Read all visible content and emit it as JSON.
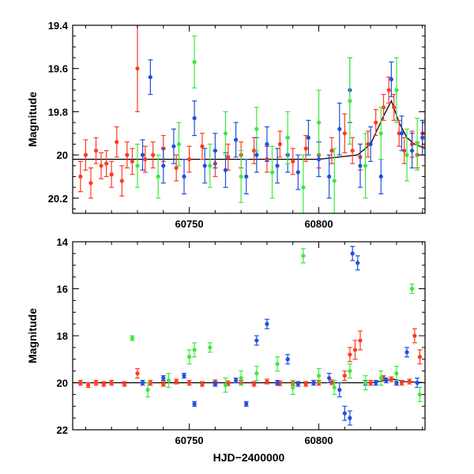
{
  "chart_data": [
    {
      "type": "scatter",
      "panel": "top",
      "xlabel": "",
      "ylabel": "Magnitude",
      "xlim": [
        60705,
        60841
      ],
      "ylim": [
        20.27,
        19.4
      ],
      "y_inverted": true,
      "x_ticks": [
        60750,
        60800
      ],
      "x_tick_labels": [
        "60750",
        "60800"
      ],
      "y_ticks": [
        19.4,
        19.6,
        19.8,
        20.0,
        20.2
      ],
      "y_tick_labels": [
        "19.4",
        "19.6",
        "19.8",
        "20",
        "20.2"
      ],
      "grid": false,
      "legend": "none",
      "series": [
        {
          "color": "#ff3b1f",
          "x": [
            60708,
            60710,
            60712,
            60714,
            60716,
            60718,
            60720,
            60722,
            60724,
            60726,
            60728,
            60730,
            60733,
            60736,
            60740,
            60745,
            60750,
            60755,
            60760,
            60765,
            60770,
            60775,
            60780,
            60785,
            60790,
            60795,
            60800,
            60805,
            60810,
            60813,
            60816,
            60819,
            60822,
            60825,
            60827,
            60829,
            60831,
            60833,
            60836,
            60838,
            60840
          ],
          "y": [
            20.1,
            20.0,
            20.13,
            19.98,
            20.05,
            20.04,
            20.09,
            19.94,
            20.12,
            20.0,
            20.03,
            19.6,
            20.02,
            20.0,
            19.97,
            20.06,
            20.02,
            19.96,
            20.04,
            20.01,
            20.0,
            19.98,
            20.02,
            19.95,
            20.03,
            19.97,
            20.0,
            19.98,
            19.9,
            19.98,
            20.01,
            19.95,
            19.85,
            19.78,
            19.7,
            19.78,
            19.9,
            19.98,
            19.95,
            20.0,
            19.9
          ],
          "err": [
            0.07,
            0.07,
            0.07,
            0.06,
            0.06,
            0.06,
            0.06,
            0.07,
            0.07,
            0.06,
            0.06,
            0.2,
            0.06,
            0.06,
            0.06,
            0.06,
            0.06,
            0.06,
            0.06,
            0.06,
            0.06,
            0.06,
            0.06,
            0.06,
            0.06,
            0.06,
            0.06,
            0.06,
            0.09,
            0.06,
            0.06,
            0.06,
            0.06,
            0.06,
            0.06,
            0.06,
            0.06,
            0.06,
            0.06,
            0.06,
            0.06
          ]
        },
        {
          "color": "#1f4fe0",
          "x": [
            60732,
            60735,
            60740,
            60744,
            60748,
            60752,
            60756,
            60760,
            60764,
            60768,
            60772,
            60776,
            60780,
            60784,
            60788,
            60792,
            60796,
            60800,
            60804,
            60808,
            60812,
            60816,
            60820,
            60824,
            60828,
            60832,
            60836,
            60840
          ],
          "y": [
            20.0,
            19.64,
            20.05,
            19.96,
            20.1,
            19.83,
            20.05,
            19.98,
            20.07,
            19.93,
            20.1,
            20.0,
            19.95,
            20.05,
            20.0,
            20.08,
            19.92,
            20.02,
            20.1,
            19.88,
            19.7,
            20.05,
            19.95,
            20.1,
            19.65,
            19.9,
            19.98,
            19.92
          ],
          "err": [
            0.07,
            0.08,
            0.08,
            0.08,
            0.08,
            0.08,
            0.08,
            0.08,
            0.08,
            0.08,
            0.08,
            0.08,
            0.08,
            0.08,
            0.08,
            0.08,
            0.08,
            0.08,
            0.1,
            0.12,
            0.15,
            0.1,
            0.08,
            0.08,
            0.08,
            0.08,
            0.08,
            0.08
          ]
        },
        {
          "color": "#3ee83e",
          "x": [
            60730,
            60738,
            60746,
            60752,
            60758,
            60764,
            60770,
            60776,
            60782,
            60788,
            60794,
            60800,
            60806,
            60812,
            60818,
            60824,
            60830,
            60834,
            60838
          ],
          "y": [
            20.05,
            20.1,
            19.95,
            19.57,
            20.05,
            19.9,
            20.1,
            19.88,
            20.08,
            19.92,
            20.15,
            19.85,
            20.12,
            19.75,
            20.05,
            19.9,
            19.7,
            20.0,
            19.95
          ],
          "err": [
            0.1,
            0.1,
            0.1,
            0.12,
            0.1,
            0.1,
            0.12,
            0.1,
            0.12,
            0.12,
            0.15,
            0.15,
            0.15,
            0.2,
            0.15,
            0.12,
            0.15,
            0.12,
            0.12
          ]
        }
      ],
      "model": {
        "color": "#000000",
        "x": [
          60705,
          60800,
          60815,
          60820,
          60825,
          60828,
          60831,
          60834,
          60837,
          60841
        ],
        "y": [
          20.02,
          20.02,
          20.0,
          19.95,
          19.82,
          19.75,
          19.85,
          19.92,
          19.95,
          19.97
        ]
      }
    },
    {
      "type": "scatter",
      "panel": "bottom",
      "xlabel": "HJD−2400000",
      "ylabel": "Magnitude",
      "xlim": [
        60705,
        60841
      ],
      "ylim": [
        22,
        14
      ],
      "y_inverted": true,
      "x_ticks": [
        60750,
        60800
      ],
      "x_tick_labels": [
        "60750",
        "60800"
      ],
      "y_ticks": [
        14,
        16,
        18,
        20,
        22
      ],
      "y_tick_labels": [
        "14",
        "16",
        "18",
        "20",
        "22"
      ],
      "grid": false,
      "legend": "none",
      "series": [
        {
          "color": "#ff3b1f",
          "x": [
            60708,
            60711,
            60714,
            60717,
            60720,
            60725,
            60730,
            60735,
            60740,
            60745,
            60750,
            60755,
            60760,
            60765,
            60770,
            60775,
            60780,
            60785,
            60790,
            60795,
            60800,
            60805,
            60810,
            60812,
            60814,
            60816,
            60820,
            60825,
            60828,
            60832,
            60835,
            60837,
            60839
          ],
          "y": [
            20.0,
            20.1,
            20.0,
            20.05,
            20.0,
            20.05,
            19.6,
            20.0,
            20.05,
            19.95,
            20.0,
            20.05,
            19.98,
            20.02,
            20.0,
            20.05,
            19.95,
            20.02,
            20.0,
            20.05,
            20.0,
            19.98,
            19.7,
            18.8,
            18.6,
            18.2,
            20.0,
            19.8,
            19.85,
            20.0,
            19.95,
            18.0,
            18.9
          ],
          "err": [
            0.1,
            0.1,
            0.1,
            0.1,
            0.1,
            0.1,
            0.2,
            0.1,
            0.1,
            0.1,
            0.1,
            0.1,
            0.1,
            0.1,
            0.1,
            0.1,
            0.1,
            0.1,
            0.1,
            0.1,
            0.1,
            0.1,
            0.2,
            0.3,
            0.4,
            0.4,
            0.1,
            0.1,
            0.1,
            0.1,
            0.1,
            0.3,
            0.3
          ]
        },
        {
          "color": "#1f4fe0",
          "x": [
            60732,
            60740,
            60748,
            60752,
            60760,
            60768,
            60772,
            60776,
            60780,
            60784,
            60788,
            60792,
            60798,
            60804,
            60808,
            60810,
            60812,
            60813,
            60815,
            60818,
            60822,
            60826,
            60830,
            60834,
            60838
          ],
          "y": [
            20.0,
            19.8,
            19.7,
            20.9,
            20.05,
            19.9,
            20.9,
            18.2,
            17.5,
            20.0,
            19.0,
            20.05,
            20.0,
            19.8,
            20.3,
            21.3,
            21.5,
            14.5,
            14.9,
            20.0,
            20.0,
            19.9,
            20.0,
            18.7,
            20.0
          ],
          "err": [
            0.1,
            0.1,
            0.1,
            0.1,
            0.1,
            0.1,
            0.1,
            0.2,
            0.2,
            0.1,
            0.2,
            0.1,
            0.1,
            0.2,
            0.3,
            0.3,
            0.3,
            0.3,
            0.3,
            0.1,
            0.1,
            0.1,
            0.1,
            0.2,
            0.2
          ]
        },
        {
          "color": "#3ee83e",
          "x": [
            60728,
            60734,
            60742,
            60750,
            60752,
            60758,
            60764,
            60770,
            60776,
            60784,
            60790,
            60794,
            60800,
            60806,
            60812,
            60818,
            60824,
            60830,
            60836,
            60839
          ],
          "y": [
            18.1,
            20.3,
            19.9,
            18.9,
            18.6,
            18.5,
            20.1,
            19.8,
            19.6,
            19.2,
            20.2,
            14.6,
            19.7,
            20.2,
            19.5,
            20.0,
            19.8,
            19.6,
            16.0,
            20.5
          ],
          "err": [
            0.1,
            0.3,
            0.3,
            0.3,
            0.3,
            0.2,
            0.3,
            0.3,
            0.3,
            0.3,
            0.3,
            0.3,
            0.3,
            0.3,
            0.3,
            0.3,
            0.3,
            0.3,
            0.2,
            0.3
          ]
        }
      ],
      "model": {
        "color": "#000000",
        "x": [
          60705,
          60820,
          60826,
          60829,
          60833,
          60841
        ],
        "y": [
          20.0,
          20.0,
          19.9,
          19.85,
          19.95,
          20.0
        ]
      }
    }
  ]
}
